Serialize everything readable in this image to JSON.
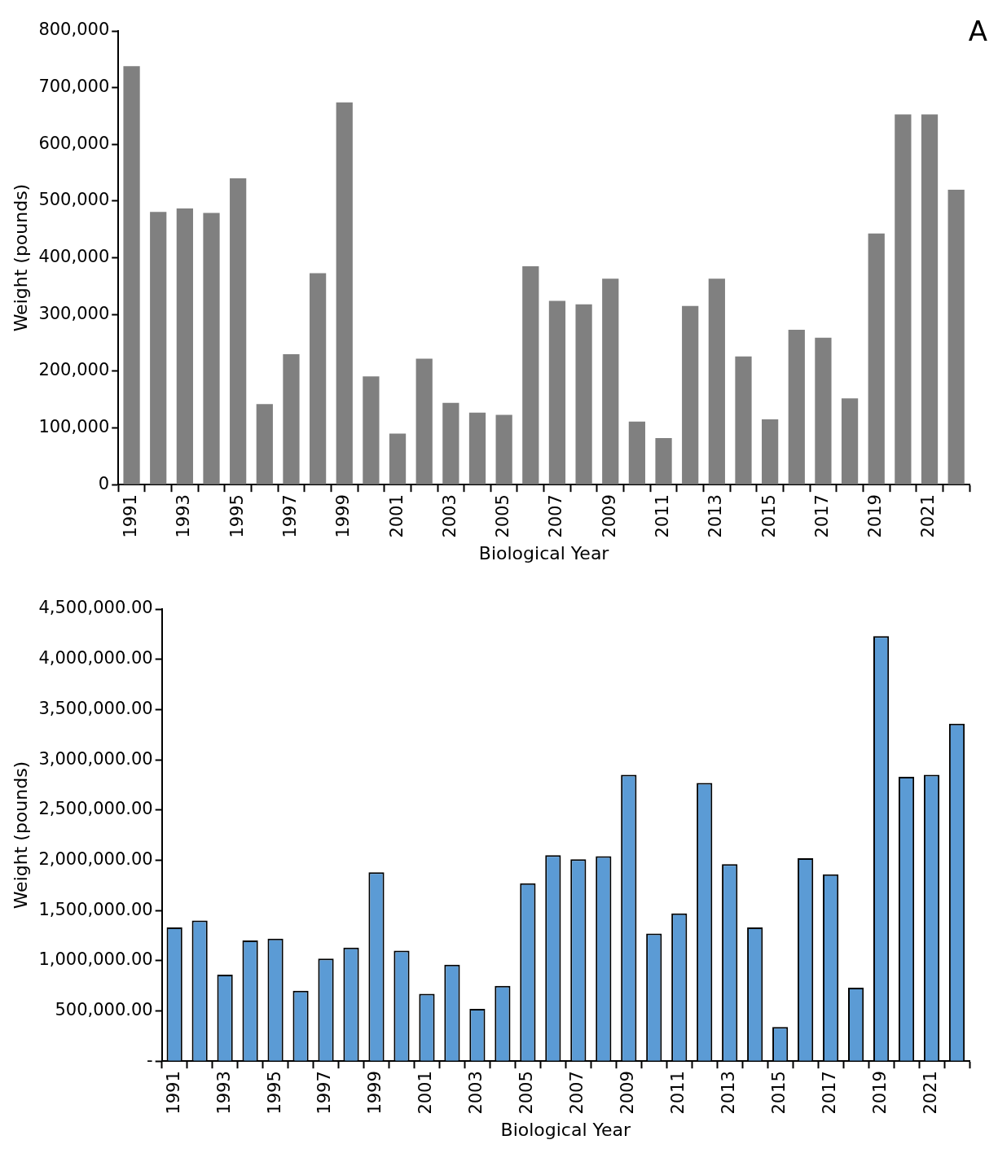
{
  "chart_data": [
    {
      "type": "bar",
      "xlabel": "Biological Year",
      "ylabel": "Weight (pounds)",
      "annotations": [
        "A"
      ],
      "categories": [
        "1991",
        null,
        "1993",
        null,
        "1995",
        null,
        "1997",
        null,
        "1999",
        null,
        "2001",
        null,
        "2003",
        null,
        "2005",
        null,
        "2007",
        null,
        "2009",
        null,
        "2011",
        null,
        "2013",
        null,
        "2015",
        null,
        "2017",
        null,
        "2019",
        null,
        "2021",
        null
      ],
      "values": [
        738000,
        481000,
        487000,
        479000,
        540000,
        142000,
        230000,
        373000,
        674000,
        191000,
        90000,
        222000,
        144000,
        127000,
        123000,
        385000,
        324000,
        318000,
        363000,
        111000,
        82000,
        315000,
        363000,
        226000,
        115000,
        273000,
        259000,
        152000,
        443000,
        653000,
        653000,
        520000
      ],
      "color": "#808080",
      "ylim": [
        0,
        800000
      ],
      "yticks": [
        {
          "value": 0,
          "label": "0"
        },
        {
          "value": 100000,
          "label": "100,000"
        },
        {
          "value": 200000,
          "label": "200,000"
        },
        {
          "value": 300000,
          "label": "300,000"
        },
        {
          "value": 400000,
          "label": "400,000"
        },
        {
          "value": 500000,
          "label": "500,000"
        },
        {
          "value": 600000,
          "label": "600,000"
        },
        {
          "value": 700000,
          "label": "700,000"
        },
        {
          "value": 800000,
          "label": "800,000"
        }
      ],
      "grid": false,
      "legend": false
    },
    {
      "type": "bar",
      "xlabel": "Biological Year",
      "ylabel": "Weight (pounds)",
      "categories": [
        "1991",
        null,
        "1993",
        null,
        "1995",
        null,
        "1997",
        null,
        "1999",
        null,
        "2001",
        null,
        "2003",
        null,
        "2005",
        null,
        "2007",
        null,
        "2009",
        null,
        "2011",
        null,
        "2013",
        null,
        "2015",
        null,
        "2017",
        null,
        "2019",
        null,
        "2021",
        null
      ],
      "values": [
        1330000,
        1400000,
        860000,
        1200000,
        1220000,
        700000,
        1020000,
        1130000,
        1880000,
        1100000,
        670000,
        960000,
        520000,
        750000,
        1770000,
        2050000,
        2010000,
        2040000,
        2850000,
        1270000,
        1470000,
        2770000,
        1960000,
        1330000,
        340000,
        2020000,
        1860000,
        730000,
        4230000,
        2830000,
        2850000,
        3360000
      ],
      "color": "#5b9bd5",
      "ylim": [
        0,
        4500000
      ],
      "yticks": [
        {
          "value": 0,
          "label": "-"
        },
        {
          "value": 500000,
          "label": "500,000.00"
        },
        {
          "value": 1000000,
          "label": "1,000,000.00"
        },
        {
          "value": 1500000,
          "label": "1,500,000.00"
        },
        {
          "value": 2000000,
          "label": "2,000,000.00"
        },
        {
          "value": 2500000,
          "label": "2,500,000.00"
        },
        {
          "value": 3000000,
          "label": "3,000,000.00"
        },
        {
          "value": 3500000,
          "label": "3,500,000.00"
        },
        {
          "value": 4000000,
          "label": "4,000,000.00"
        },
        {
          "value": 4500000,
          "label": "4,500,000.00"
        }
      ],
      "grid": false,
      "legend": false
    }
  ]
}
